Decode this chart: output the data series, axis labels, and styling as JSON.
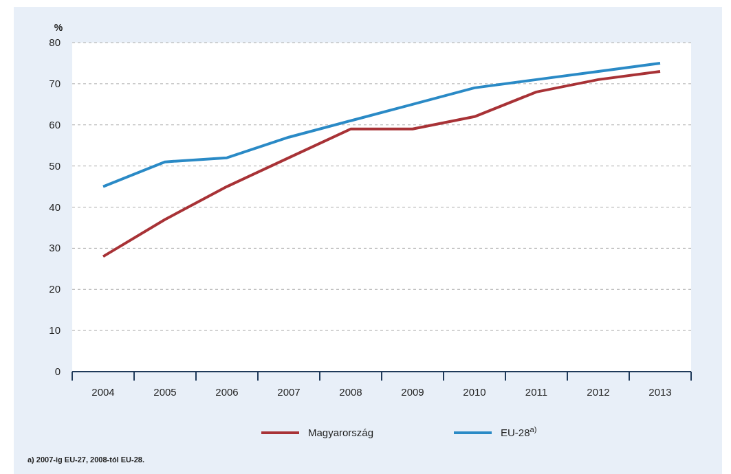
{
  "chart_data": {
    "type": "line",
    "ylabel": "%",
    "categories": [
      "2004",
      "2005",
      "2006",
      "2007",
      "2008",
      "2009",
      "2010",
      "2011",
      "2012",
      "2013"
    ],
    "series": [
      {
        "name": "Magyarország",
        "color": "#a83236",
        "values": [
          28,
          37,
          45,
          52,
          59,
          59,
          62,
          68,
          71,
          73
        ]
      },
      {
        "name": "EU-28$^{a)}$",
        "color": "#2a8ac6",
        "values": [
          45,
          51,
          52,
          57,
          61,
          65,
          69,
          71,
          73,
          75
        ]
      }
    ],
    "ylim": [
      0,
      80
    ],
    "yticks": [
      0,
      10,
      20,
      30,
      40,
      50,
      60,
      70,
      80
    ],
    "grid": "y",
    "legend": "bottom",
    "line_style": "solid",
    "marker": "none",
    "annotations": [
      "a) 2007-ig EU-27, 2008-tól EU-28."
    ]
  }
}
